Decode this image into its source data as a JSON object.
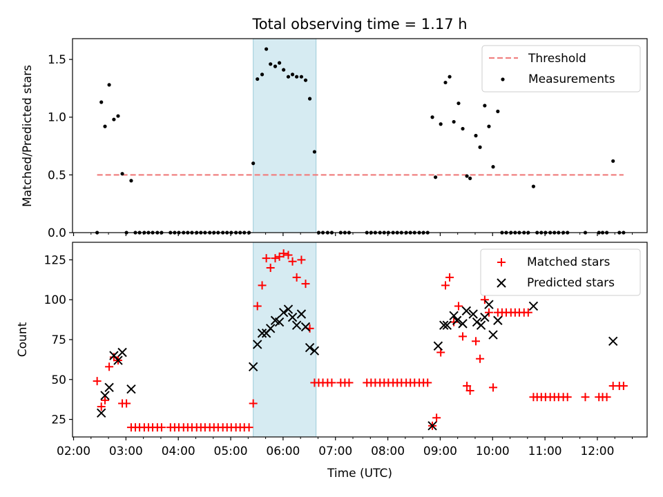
{
  "figure": {
    "title": "Total observing time = 1.17 h",
    "xlabel": "Time (UTC)",
    "xtick_labels": [
      "02:00",
      "03:00",
      "04:00",
      "05:00",
      "06:00",
      "07:00",
      "08:00",
      "09:00",
      "10:00",
      "11:00",
      "12:00"
    ],
    "highlight_band": {
      "start_h": 5.43,
      "end_h": 6.63,
      "color": "#add8e6"
    }
  },
  "chart_data": [
    {
      "type": "scatter",
      "title": "Total observing time = 1.17 h",
      "xlabel": "",
      "ylabel": "Matched/Predicted stars",
      "x_units": "hours UTC",
      "xlim": [
        1.98,
        12.95
      ],
      "ylim": [
        0,
        1.68
      ],
      "yticks": [
        0.0,
        0.5,
        1.0,
        1.5
      ],
      "ytick_labels": [
        "0.0",
        "0.5",
        "1.0",
        "1.5"
      ],
      "legend": "top-right",
      "threshold": {
        "name": "Threshold",
        "value": 0.5,
        "x_range": [
          2.45,
          12.5
        ],
        "color": "#f08080",
        "style": "dashed"
      },
      "series": [
        {
          "name": "Measurements",
          "color": "#000000",
          "points": [
            [
              2.45,
              0.0
            ],
            [
              2.53,
              1.13
            ],
            [
              2.6,
              0.92
            ],
            [
              2.68,
              1.28
            ],
            [
              2.77,
              0.98
            ],
            [
              2.85,
              1.01
            ],
            [
              2.93,
              0.51
            ],
            [
              3.01,
              0.0
            ],
            [
              3.1,
              0.45
            ],
            [
              3.18,
              0.0
            ],
            [
              3.26,
              0.0
            ],
            [
              3.35,
              0.0
            ],
            [
              3.43,
              0.0
            ],
            [
              3.51,
              0.0
            ],
            [
              3.6,
              0.0
            ],
            [
              3.68,
              0.0
            ],
            [
              3.85,
              0.0
            ],
            [
              3.93,
              0.0
            ],
            [
              4.01,
              0.0
            ],
            [
              4.1,
              0.0
            ],
            [
              4.18,
              0.0
            ],
            [
              4.26,
              0.0
            ],
            [
              4.35,
              0.0
            ],
            [
              4.43,
              0.0
            ],
            [
              4.51,
              0.0
            ],
            [
              4.6,
              0.0
            ],
            [
              4.68,
              0.0
            ],
            [
              4.76,
              0.0
            ],
            [
              4.85,
              0.0
            ],
            [
              4.93,
              0.0
            ],
            [
              5.01,
              0.0
            ],
            [
              5.1,
              0.0
            ],
            [
              5.18,
              0.0
            ],
            [
              5.26,
              0.0
            ],
            [
              5.35,
              0.0
            ],
            [
              5.43,
              0.6
            ],
            [
              5.51,
              1.33
            ],
            [
              5.6,
              1.37
            ],
            [
              5.68,
              1.59
            ],
            [
              5.76,
              1.46
            ],
            [
              5.85,
              1.44
            ],
            [
              5.93,
              1.47
            ],
            [
              6.01,
              1.41
            ],
            [
              6.1,
              1.35
            ],
            [
              6.18,
              1.37
            ],
            [
              6.26,
              1.35
            ],
            [
              6.35,
              1.35
            ],
            [
              6.43,
              1.32
            ],
            [
              6.51,
              1.16
            ],
            [
              6.6,
              0.7
            ],
            [
              6.68,
              0.0
            ],
            [
              6.76,
              0.0
            ],
            [
              6.85,
              0.0
            ],
            [
              6.93,
              0.0
            ],
            [
              7.1,
              0.0
            ],
            [
              7.18,
              0.0
            ],
            [
              7.26,
              0.0
            ],
            [
              7.6,
              0.0
            ],
            [
              7.68,
              0.0
            ],
            [
              7.76,
              0.0
            ],
            [
              7.85,
              0.0
            ],
            [
              7.93,
              0.0
            ],
            [
              8.01,
              0.0
            ],
            [
              8.1,
              0.0
            ],
            [
              8.18,
              0.0
            ],
            [
              8.26,
              0.0
            ],
            [
              8.35,
              0.0
            ],
            [
              8.43,
              0.0
            ],
            [
              8.51,
              0.0
            ],
            [
              8.6,
              0.0
            ],
            [
              8.68,
              0.0
            ],
            [
              8.76,
              0.0
            ],
            [
              8.85,
              1.0
            ],
            [
              8.91,
              0.48
            ],
            [
              9.01,
              0.94
            ],
            [
              9.1,
              1.3
            ],
            [
              9.18,
              1.35
            ],
            [
              9.26,
              0.96
            ],
            [
              9.35,
              1.12
            ],
            [
              9.43,
              0.9
            ],
            [
              9.51,
              0.49
            ],
            [
              9.57,
              0.47
            ],
            [
              9.68,
              0.84
            ],
            [
              9.76,
              0.74
            ],
            [
              9.85,
              1.1
            ],
            [
              9.93,
              0.92
            ],
            [
              10.01,
              0.57
            ],
            [
              10.1,
              1.05
            ],
            [
              10.18,
              0.0
            ],
            [
              10.26,
              0.0
            ],
            [
              10.35,
              0.0
            ],
            [
              10.43,
              0.0
            ],
            [
              10.51,
              0.0
            ],
            [
              10.6,
              0.0
            ],
            [
              10.68,
              0.0
            ],
            [
              10.78,
              0.4
            ],
            [
              10.85,
              0.0
            ],
            [
              10.93,
              0.0
            ],
            [
              11.01,
              0.0
            ],
            [
              11.1,
              0.0
            ],
            [
              11.18,
              0.0
            ],
            [
              11.26,
              0.0
            ],
            [
              11.35,
              0.0
            ],
            [
              11.43,
              0.0
            ],
            [
              11.77,
              0.0
            ],
            [
              12.03,
              0.0
            ],
            [
              12.1,
              0.0
            ],
            [
              12.18,
              0.0
            ],
            [
              12.3,
              0.62
            ],
            [
              12.42,
              0.0
            ],
            [
              12.5,
              0.0
            ]
          ]
        }
      ]
    },
    {
      "type": "scatter",
      "title": "",
      "xlabel": "Time (UTC)",
      "ylabel": "Count",
      "x_units": "hours UTC",
      "xlim": [
        1.98,
        12.95
      ],
      "ylim": [
        14,
        136
      ],
      "yticks": [
        25,
        50,
        75,
        100,
        125
      ],
      "ytick_labels": [
        "25",
        "50",
        "75",
        "100",
        "125"
      ],
      "legend": "top-right",
      "series": [
        {
          "name": "Matched stars",
          "color": "#ff0000",
          "marker": "plus",
          "points": [
            [
              2.45,
              49
            ],
            [
              2.53,
              33
            ],
            [
              2.6,
              37
            ],
            [
              2.68,
              58
            ],
            [
              2.77,
              64
            ],
            [
              2.85,
              62
            ],
            [
              2.93,
              35
            ],
            [
              3.01,
              35
            ],
            [
              3.1,
              20
            ],
            [
              3.18,
              20
            ],
            [
              3.26,
              20
            ],
            [
              3.35,
              20
            ],
            [
              3.43,
              20
            ],
            [
              3.51,
              20
            ],
            [
              3.6,
              20
            ],
            [
              3.68,
              20
            ],
            [
              3.85,
              20
            ],
            [
              3.93,
              20
            ],
            [
              4.01,
              20
            ],
            [
              4.1,
              20
            ],
            [
              4.18,
              20
            ],
            [
              4.26,
              20
            ],
            [
              4.35,
              20
            ],
            [
              4.43,
              20
            ],
            [
              4.51,
              20
            ],
            [
              4.6,
              20
            ],
            [
              4.68,
              20
            ],
            [
              4.76,
              20
            ],
            [
              4.85,
              20
            ],
            [
              4.93,
              20
            ],
            [
              5.01,
              20
            ],
            [
              5.1,
              20
            ],
            [
              5.18,
              20
            ],
            [
              5.26,
              20
            ],
            [
              5.35,
              20
            ],
            [
              5.43,
              35
            ],
            [
              5.51,
              96
            ],
            [
              5.6,
              109
            ],
            [
              5.68,
              126
            ],
            [
              5.76,
              120
            ],
            [
              5.85,
              126
            ],
            [
              5.93,
              127
            ],
            [
              6.01,
              129
            ],
            [
              6.1,
              128
            ],
            [
              6.18,
              124
            ],
            [
              6.26,
              114
            ],
            [
              6.35,
              125
            ],
            [
              6.43,
              110
            ],
            [
              6.51,
              82
            ],
            [
              6.6,
              48
            ],
            [
              6.68,
              48
            ],
            [
              6.76,
              48
            ],
            [
              6.85,
              48
            ],
            [
              6.93,
              48
            ],
            [
              7.1,
              48
            ],
            [
              7.18,
              48
            ],
            [
              7.26,
              48
            ],
            [
              7.6,
              48
            ],
            [
              7.68,
              48
            ],
            [
              7.76,
              48
            ],
            [
              7.85,
              48
            ],
            [
              7.93,
              48
            ],
            [
              8.01,
              48
            ],
            [
              8.1,
              48
            ],
            [
              8.18,
              48
            ],
            [
              8.26,
              48
            ],
            [
              8.35,
              48
            ],
            [
              8.43,
              48
            ],
            [
              8.51,
              48
            ],
            [
              8.6,
              48
            ],
            [
              8.68,
              48
            ],
            [
              8.76,
              48
            ],
            [
              8.85,
              21
            ],
            [
              8.93,
              26
            ],
            [
              9.01,
              67
            ],
            [
              9.1,
              109
            ],
            [
              9.18,
              114
            ],
            [
              9.26,
              86
            ],
            [
              9.35,
              96
            ],
            [
              9.43,
              77
            ],
            [
              9.51,
              46
            ],
            [
              9.57,
              43
            ],
            [
              9.68,
              74
            ],
            [
              9.76,
              63
            ],
            [
              9.85,
              100
            ],
            [
              9.93,
              92
            ],
            [
              10.01,
              45
            ],
            [
              10.1,
              92
            ],
            [
              10.18,
              92
            ],
            [
              10.26,
              92
            ],
            [
              10.35,
              92
            ],
            [
              10.43,
              92
            ],
            [
              10.51,
              92
            ],
            [
              10.6,
              92
            ],
            [
              10.68,
              92
            ],
            [
              10.78,
              39
            ],
            [
              10.85,
              39
            ],
            [
              10.93,
              39
            ],
            [
              11.01,
              39
            ],
            [
              11.1,
              39
            ],
            [
              11.18,
              39
            ],
            [
              11.26,
              39
            ],
            [
              11.35,
              39
            ],
            [
              11.43,
              39
            ],
            [
              11.77,
              39
            ],
            [
              12.03,
              39
            ],
            [
              12.1,
              39
            ],
            [
              12.18,
              39
            ],
            [
              12.3,
              46
            ],
            [
              12.42,
              46
            ],
            [
              12.5,
              46
            ]
          ]
        },
        {
          "name": "Predicted stars",
          "color": "#000000",
          "marker": "x",
          "points": [
            [
              2.53,
              29
            ],
            [
              2.6,
              40
            ],
            [
              2.68,
              45
            ],
            [
              2.77,
              65
            ],
            [
              2.85,
              62
            ],
            [
              2.93,
              67
            ],
            [
              3.1,
              44
            ],
            [
              5.43,
              58
            ],
            [
              5.51,
              72
            ],
            [
              5.6,
              79
            ],
            [
              5.68,
              79
            ],
            [
              5.76,
              82
            ],
            [
              5.85,
              87
            ],
            [
              5.93,
              86
            ],
            [
              6.01,
              92
            ],
            [
              6.1,
              94
            ],
            [
              6.18,
              89
            ],
            [
              6.26,
              84
            ],
            [
              6.35,
              91
            ],
            [
              6.43,
              83
            ],
            [
              6.51,
              70
            ],
            [
              6.6,
              68
            ],
            [
              8.85,
              21
            ],
            [
              8.96,
              71
            ],
            [
              9.07,
              84
            ],
            [
              9.13,
              84
            ],
            [
              9.26,
              90
            ],
            [
              9.32,
              87
            ],
            [
              9.43,
              85
            ],
            [
              9.5,
              93
            ],
            [
              9.63,
              91
            ],
            [
              9.7,
              86
            ],
            [
              9.78,
              84
            ],
            [
              9.85,
              89
            ],
            [
              9.93,
              97
            ],
            [
              10.01,
              78
            ],
            [
              10.1,
              87
            ],
            [
              10.78,
              96
            ],
            [
              12.3,
              74
            ]
          ]
        }
      ]
    }
  ]
}
